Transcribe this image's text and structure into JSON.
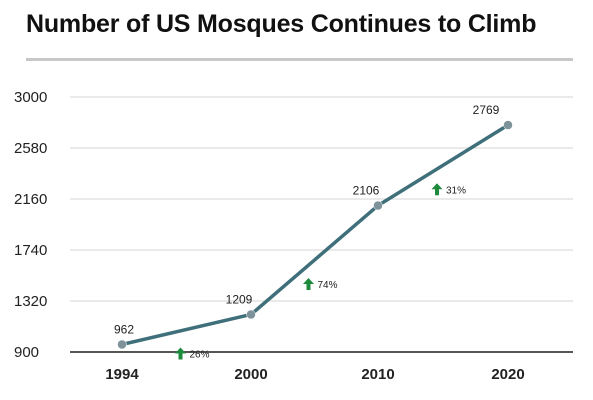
{
  "title": "Number of US Mosques Continues to Climb",
  "chart_data": {
    "type": "line",
    "title": "Number of US Mosques Continues to Climb",
    "xlabel": "",
    "ylabel": "",
    "categories": [
      "1994",
      "2000",
      "2010",
      "2020"
    ],
    "values": [
      962,
      1209,
      2106,
      2769
    ],
    "data_labels": [
      "962",
      "1209",
      "2106",
      "2769"
    ],
    "yticks": [
      "900",
      "1320",
      "1740",
      "2160",
      "2580",
      "3000"
    ],
    "ylim": [
      900,
      3000
    ],
    "grid": true,
    "growth_annotations": [
      "26%",
      "74%",
      "31%"
    ],
    "colors": {
      "line": "#3f6f7a",
      "marker": "#7e929a",
      "arrow": "#1e8a3c",
      "grid": "#d6d6d6",
      "axis": "#555555"
    }
  }
}
